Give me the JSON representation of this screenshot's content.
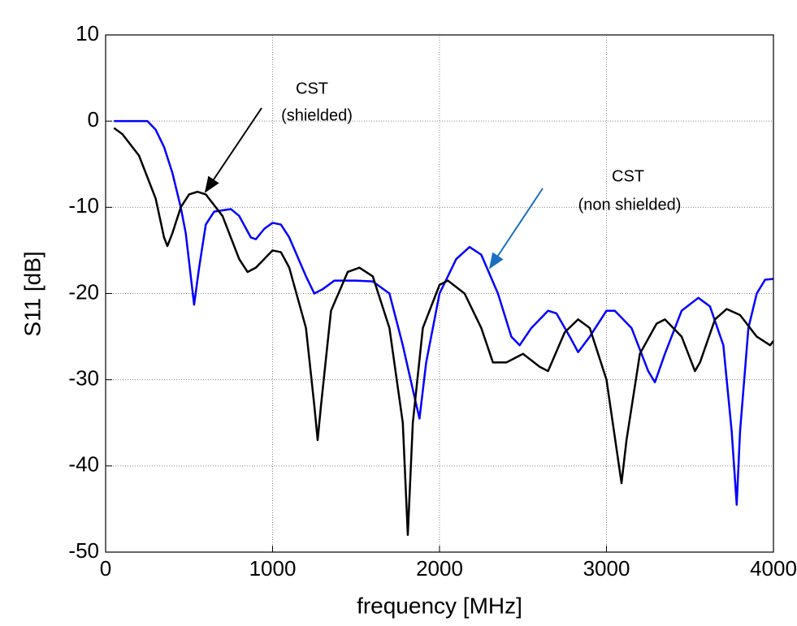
{
  "chart_data": {
    "type": "line",
    "x_label": "frequency [MHz]",
    "y_label": "S11 [dB]",
    "xlim": [
      0,
      4000
    ],
    "xticks": [
      0,
      1000,
      2000,
      3000,
      4000
    ],
    "ylim": [
      -50,
      10
    ],
    "yticks": [
      -50,
      -40,
      -30,
      -20,
      -10,
      0,
      10
    ],
    "grid": true,
    "annotations": [
      [
        "CST",
        "(shielded)"
      ],
      [
        "CST",
        "(non shielded)"
      ]
    ],
    "series": [
      {
        "color": "#0000ff",
        "x": [
          50,
          250,
          300,
          350,
          400,
          450,
          480,
          510,
          530,
          560,
          600,
          650,
          750,
          800,
          870,
          900,
          950,
          1000,
          1050,
          1100,
          1200,
          1250,
          1300,
          1370,
          1500,
          1600,
          1700,
          1780,
          1850,
          1880,
          1920,
          2000,
          2100,
          2180,
          2250,
          2350,
          2430,
          2480,
          2550,
          2650,
          2700,
          2780,
          2830,
          2900,
          3000,
          3050,
          3150,
          3250,
          3290,
          3350,
          3450,
          3550,
          3620,
          3700,
          3750,
          3780,
          3800,
          3850,
          3900,
          3950,
          4000
        ],
        "values": [
          0,
          0,
          -1,
          -3,
          -6,
          -10,
          -13,
          -18,
          -21.3,
          -17,
          -12,
          -10.5,
          -10.2,
          -11,
          -13.5,
          -13.7,
          -12.5,
          -11.8,
          -12,
          -13.5,
          -18,
          -20,
          -19.5,
          -18.5,
          -18.5,
          -18.6,
          -20,
          -26,
          -32,
          -34.5,
          -28,
          -20,
          -16,
          -14.6,
          -15.5,
          -20,
          -25,
          -26,
          -24,
          -22,
          -22.3,
          -25,
          -26.8,
          -25,
          -22,
          -22,
          -24,
          -29,
          -30.3,
          -27,
          -22,
          -20.5,
          -21.5,
          -26,
          -36,
          -44.5,
          -36,
          -24,
          -20,
          -18.4,
          -18.3
        ]
      },
      {
        "color": "#000000",
        "x": [
          50,
          100,
          200,
          300,
          350,
          370,
          400,
          450,
          500,
          550,
          600,
          700,
          800,
          850,
          900,
          1000,
          1050,
          1100,
          1200,
          1250,
          1270,
          1290,
          1350,
          1450,
          1520,
          1600,
          1700,
          1780,
          1810,
          1840,
          1900,
          2000,
          2050,
          2150,
          2250,
          2320,
          2400,
          2500,
          2600,
          2650,
          2750,
          2830,
          2900,
          3000,
          3060,
          3090,
          3120,
          3200,
          3300,
          3350,
          3450,
          3530,
          3560,
          3650,
          3720,
          3800,
          3900,
          3980,
          4000
        ],
        "values": [
          -0.8,
          -1.5,
          -4,
          -9,
          -13.5,
          -14.5,
          -13,
          -10,
          -8.5,
          -8.2,
          -8.5,
          -11,
          -16,
          -17.5,
          -17,
          -15,
          -15.2,
          -17,
          -24,
          -33,
          -37,
          -33,
          -22,
          -17.5,
          -17,
          -18,
          -24,
          -35,
          -48,
          -35,
          -24,
          -19,
          -18.5,
          -20,
          -24,
          -28,
          -28,
          -27,
          -28.5,
          -29,
          -24.5,
          -23,
          -24,
          -30,
          -38,
          -42,
          -37,
          -27,
          -23.5,
          -23,
          -25,
          -29,
          -28,
          -23,
          -21.8,
          -22.5,
          -25,
          -26,
          -25.5
        ]
      }
    ]
  }
}
